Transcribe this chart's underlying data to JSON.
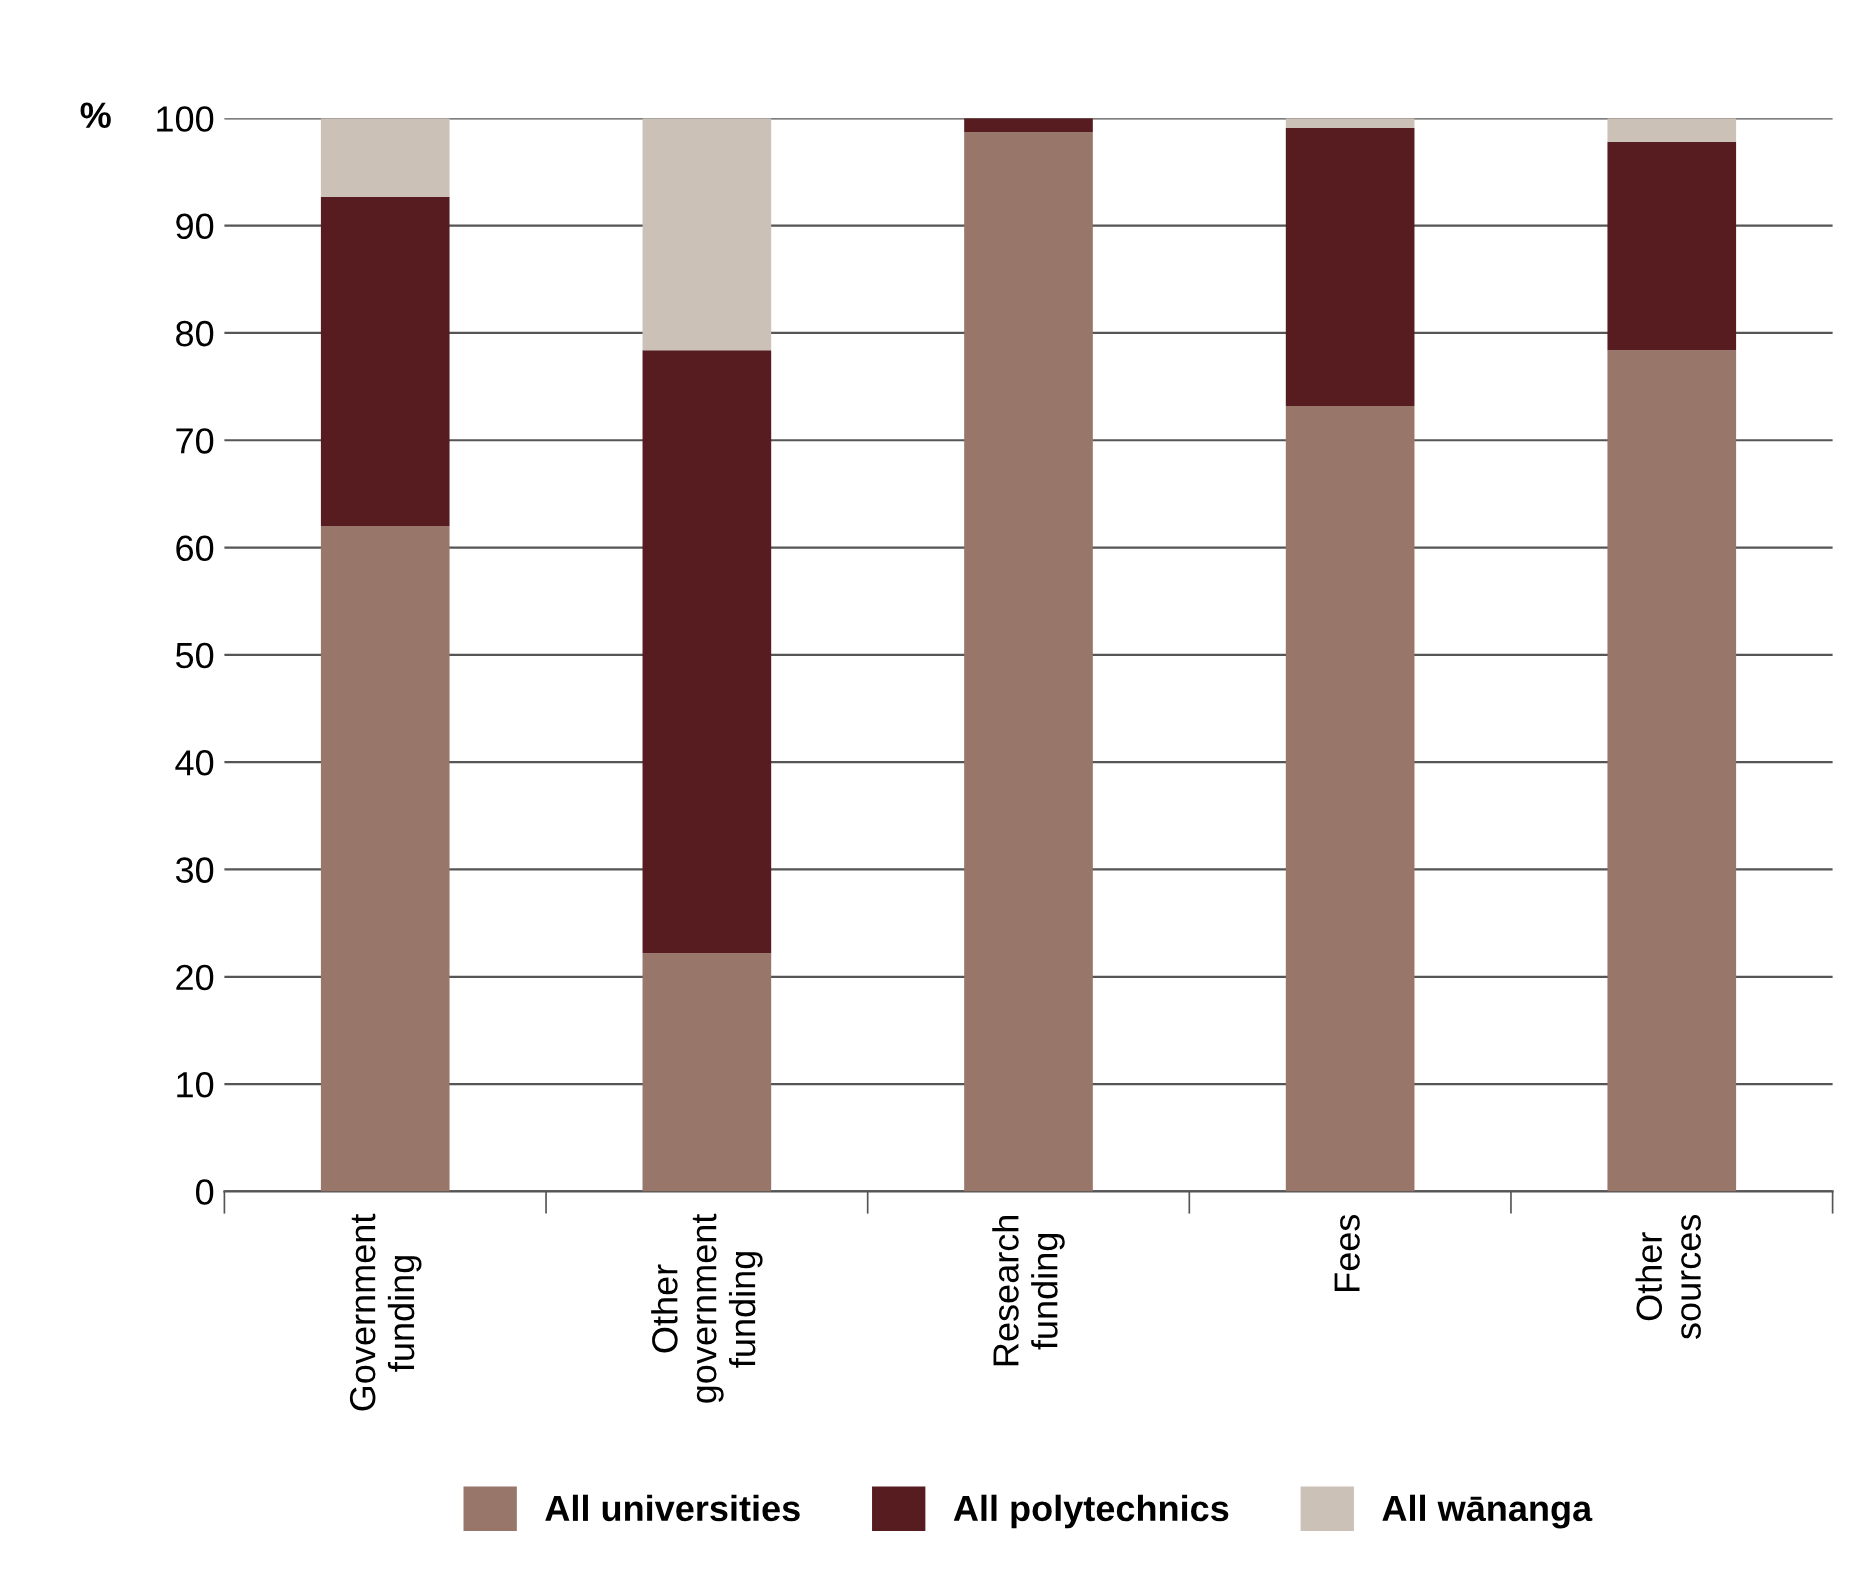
{
  "chart_data": {
    "type": "bar",
    "stacked": true,
    "ylabel": "%",
    "categories": [
      "Government\nfunding",
      "Other\ngovernment\nfunding",
      "Research\nfunding",
      "Fees",
      "Other\nsources"
    ],
    "series": [
      {
        "name": "All universities",
        "color": "#98766a",
        "values": [
          62,
          22.2,
          98.7,
          73.2,
          78.4
        ]
      },
      {
        "name": "All polytechnics",
        "color": "#561c20",
        "values": [
          30.7,
          56.2,
          1.3,
          25.9,
          19.4
        ]
      },
      {
        "name": "All wānanga",
        "color": "#cbc1b6",
        "values": [
          7.3,
          21.6,
          0,
          0.9,
          2.2
        ]
      }
    ],
    "ylim": [
      0,
      100
    ],
    "yticks": [
      0,
      10,
      20,
      30,
      40,
      50,
      60,
      70,
      80,
      90,
      100
    ],
    "grid": "y",
    "legend": "bottom"
  }
}
